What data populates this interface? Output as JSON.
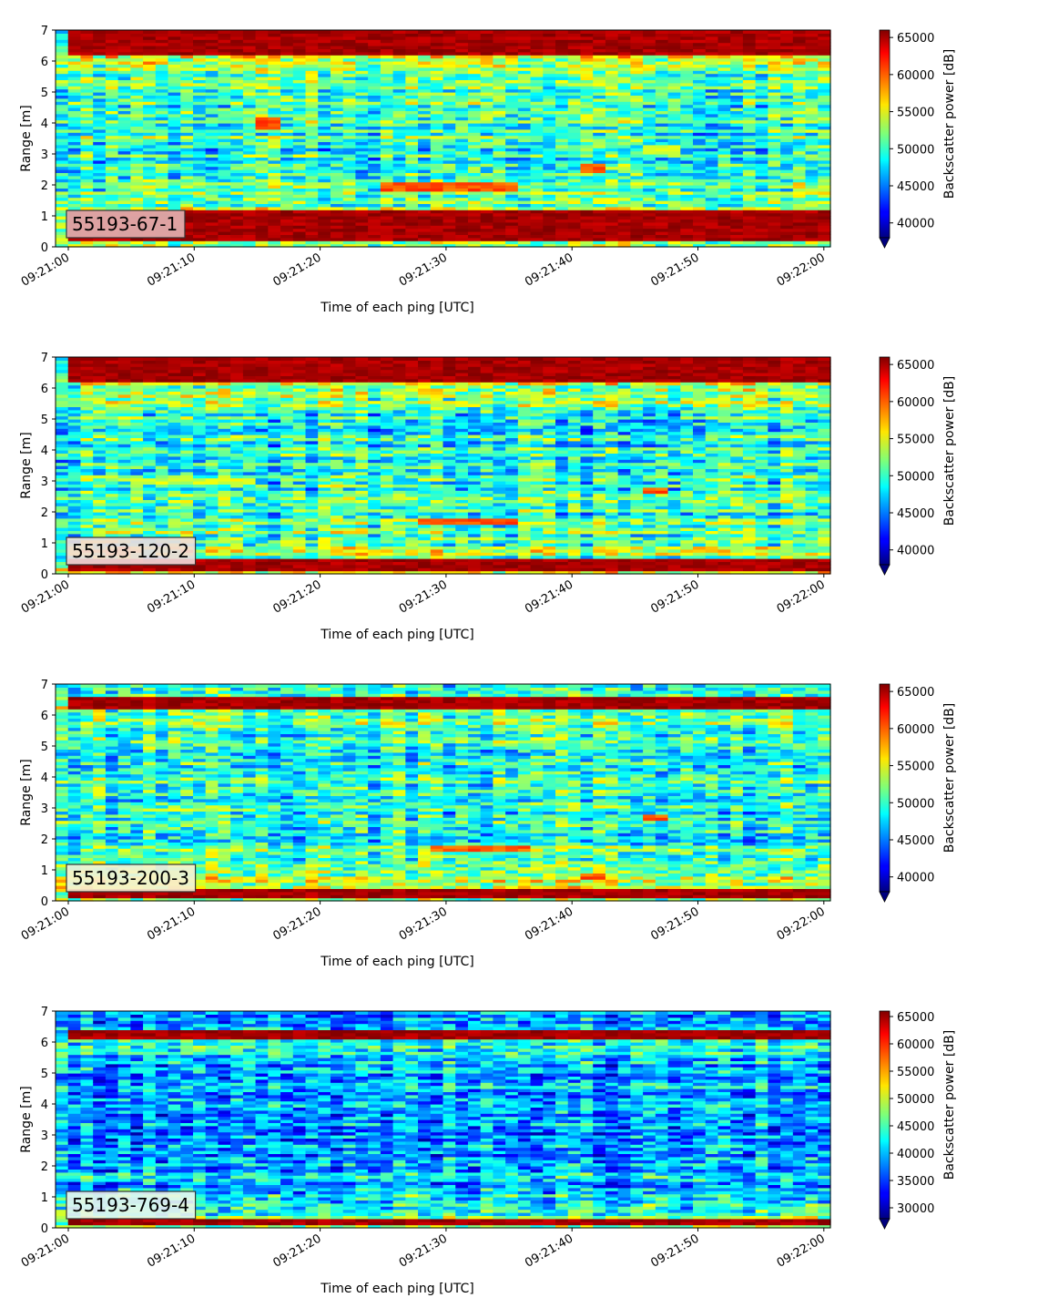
{
  "chart_data": [
    {
      "type": "heatmap",
      "tag": "55193-67-1",
      "tag_color": "#e2b4b4",
      "xlabel": "Time of each ping [UTC]",
      "ylabel": "Range [m]",
      "x_ticks": [
        "09:21:00",
        "09:21:10",
        "09:21:20",
        "09:21:30",
        "09:21:40",
        "09:21:50",
        "09:22:00"
      ],
      "y_ticks": [
        0,
        1,
        2,
        3,
        4,
        5,
        6,
        7
      ],
      "ylim": [
        0,
        7
      ],
      "colorbar": {
        "label": "Backscatter power [dB]",
        "ticks": [
          40000,
          45000,
          50000,
          55000,
          60000,
          65000
        ],
        "range": [
          38000,
          66000
        ],
        "extend": "min"
      },
      "features": [
        {
          "range_m": [
            0.2,
            1.2
          ],
          "level": "max",
          "time_s": [
            0,
            61
          ]
        },
        {
          "range_m": [
            6.2,
            7.0
          ],
          "level": "max",
          "time_s": [
            0,
            61
          ]
        },
        {
          "range_m": [
            1.8,
            2.1
          ],
          "level": "high",
          "time_s": [
            25,
            36
          ]
        },
        {
          "range_m": [
            3.8,
            4.2
          ],
          "level": "high",
          "time_s": [
            15,
            17
          ]
        },
        {
          "range_m": [
            2.4,
            2.7
          ],
          "level": "high",
          "time_s": [
            41,
            43
          ]
        },
        {
          "range_m": [
            3.0,
            3.3
          ],
          "level": "mid",
          "time_s": [
            46,
            49
          ]
        }
      ]
    },
    {
      "type": "heatmap",
      "tag": "55193-120-2",
      "tag_color": "#f1dcdc",
      "xlabel": "Time of each ping [UTC]",
      "ylabel": "Range [m]",
      "x_ticks": [
        "09:21:00",
        "09:21:10",
        "09:21:20",
        "09:21:30",
        "09:21:40",
        "09:21:50",
        "09:22:00"
      ],
      "y_ticks": [
        0,
        1,
        2,
        3,
        4,
        5,
        6,
        7
      ],
      "ylim": [
        0,
        7
      ],
      "colorbar": {
        "label": "Backscatter power [dB]",
        "ticks": [
          40000,
          45000,
          50000,
          55000,
          60000,
          65000
        ],
        "range": [
          38000,
          66000
        ],
        "extend": "min"
      },
      "features": [
        {
          "range_m": [
            0.1,
            0.5
          ],
          "level": "max",
          "time_s": [
            0,
            61
          ]
        },
        {
          "range_m": [
            6.2,
            7.0
          ],
          "level": "max",
          "time_s": [
            0,
            61
          ]
        },
        {
          "range_m": [
            1.6,
            1.8
          ],
          "level": "high",
          "time_s": [
            28,
            36
          ]
        },
        {
          "range_m": [
            2.9,
            3.1
          ],
          "level": "mid",
          "time_s": [
            5,
            15
          ]
        },
        {
          "range_m": [
            2.6,
            2.8
          ],
          "level": "high",
          "time_s": [
            46,
            48
          ]
        }
      ]
    },
    {
      "type": "heatmap",
      "tag": "55193-200-3",
      "tag_color": "#f7f2d4",
      "xlabel": "Time of each ping [UTC]",
      "ylabel": "Range [m]",
      "x_ticks": [
        "09:21:00",
        "09:21:10",
        "09:21:20",
        "09:21:30",
        "09:21:40",
        "09:21:50",
        "09:22:00"
      ],
      "y_ticks": [
        0,
        1,
        2,
        3,
        4,
        5,
        6,
        7
      ],
      "ylim": [
        0,
        7
      ],
      "colorbar": {
        "label": "Backscatter power [dB]",
        "ticks": [
          40000,
          45000,
          50000,
          55000,
          60000,
          65000
        ],
        "range": [
          38000,
          66000
        ],
        "extend": "min"
      },
      "features": [
        {
          "range_m": [
            0.1,
            0.4
          ],
          "level": "max",
          "time_s": [
            0,
            61
          ]
        },
        {
          "range_m": [
            6.2,
            6.6
          ],
          "level": "max",
          "time_s": [
            0,
            61
          ]
        },
        {
          "range_m": [
            1.6,
            1.8
          ],
          "level": "high",
          "time_s": [
            29,
            37
          ]
        },
        {
          "range_m": [
            2.9,
            3.0
          ],
          "level": "mid",
          "time_s": [
            5,
            15
          ]
        },
        {
          "range_m": [
            2.6,
            2.8
          ],
          "level": "high",
          "time_s": [
            46,
            48
          ]
        },
        {
          "range_m": [
            0.7,
            0.9
          ],
          "level": "high",
          "time_s": [
            41,
            43
          ]
        }
      ]
    },
    {
      "type": "heatmap",
      "tag": "55193-769-4",
      "tag_color": "#e9f6ec",
      "xlabel": "Time of each ping [UTC]",
      "ylabel": "Range [m]",
      "x_ticks": [
        "09:21:00",
        "09:21:10",
        "09:21:20",
        "09:21:30",
        "09:21:40",
        "09:21:50",
        "09:22:00"
      ],
      "y_ticks": [
        0,
        1,
        2,
        3,
        4,
        5,
        6,
        7
      ],
      "ylim": [
        0,
        7
      ],
      "colorbar": {
        "label": "Backscatter power [dB]",
        "ticks": [
          30000,
          35000,
          40000,
          45000,
          50000,
          55000,
          60000,
          65000
        ],
        "range": [
          28000,
          66000
        ],
        "extend": "min"
      },
      "features": [
        {
          "range_m": [
            0.15,
            0.35
          ],
          "level": "max",
          "time_s": [
            0,
            61
          ]
        },
        {
          "range_m": [
            6.1,
            6.4
          ],
          "level": "max",
          "time_s": [
            0,
            61
          ]
        }
      ]
    }
  ]
}
